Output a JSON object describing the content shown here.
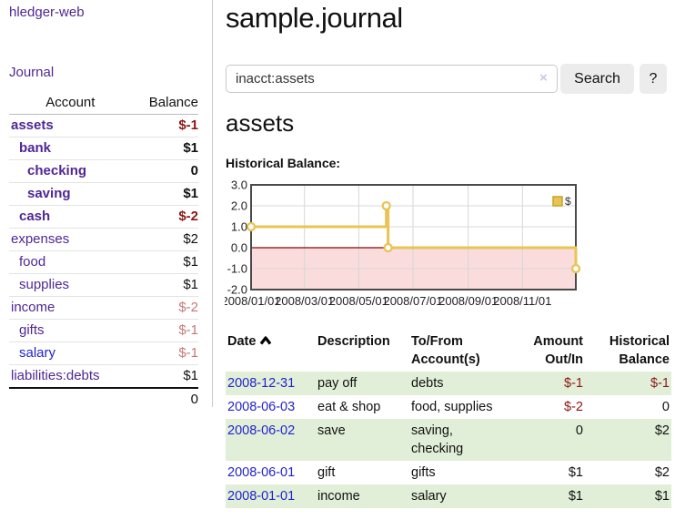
{
  "colors": {
    "link_purple": "#4f2795",
    "link_blue": "#2323cc",
    "negative_strong": "#8e1515",
    "negative_soft": "#c57878",
    "row_green": "#e1efd8",
    "chart_gold": "#e9c454",
    "chart_negative_fill": "#fadcdc",
    "chart_zero_line": "#7d0b0b",
    "button_gray": "#ececec"
  },
  "app_title": "hledger-web",
  "sidebar": {
    "journal_link": "Journal",
    "table_headers": {
      "account": "Account",
      "balance": "Balance"
    },
    "accounts": [
      {
        "name": "assets",
        "balance": "$-1",
        "depth": 1,
        "bold": true,
        "amount_style": "neg-strong",
        "link_style": "purple"
      },
      {
        "name": "bank",
        "balance": "$1",
        "depth": 2,
        "bold": true,
        "amount_style": "normal",
        "link_style": "purple"
      },
      {
        "name": "checking",
        "balance": "0",
        "depth": 3,
        "bold": true,
        "amount_style": "normal",
        "link_style": "purple"
      },
      {
        "name": "saving",
        "balance": "$1",
        "depth": 3,
        "bold": true,
        "amount_style": "normal",
        "link_style": "purple"
      },
      {
        "name": "cash",
        "balance": "$-2",
        "depth": 2,
        "bold": true,
        "amount_style": "neg-strong",
        "link_style": "purple"
      },
      {
        "name": "expenses",
        "balance": "$2",
        "depth": 1,
        "bold": false,
        "amount_style": "normal",
        "link_style": "purple"
      },
      {
        "name": "food",
        "balance": "$1",
        "depth": 2,
        "bold": false,
        "amount_style": "normal",
        "link_style": "purple"
      },
      {
        "name": "supplies",
        "balance": "$1",
        "depth": 2,
        "bold": false,
        "amount_style": "normal",
        "link_style": "purple"
      },
      {
        "name": "income",
        "balance": "$-2",
        "depth": 1,
        "bold": false,
        "amount_style": "neg-soft",
        "link_style": "purple"
      },
      {
        "name": "gifts",
        "balance": "$-1",
        "depth": 2,
        "bold": false,
        "amount_style": "neg-soft",
        "link_style": "purple"
      },
      {
        "name": "salary",
        "balance": "$-1",
        "depth": 2,
        "bold": false,
        "amount_style": "neg-soft",
        "link_style": "blue"
      },
      {
        "name": "liabilities:debts",
        "balance": "$1",
        "depth": 1,
        "bold": false,
        "amount_style": "normal",
        "link_style": "purple"
      }
    ],
    "total": "0"
  },
  "header": {
    "title": "sample.journal"
  },
  "search": {
    "value": "inacct:assets",
    "clear_icon": "×",
    "search_button": "Search",
    "help_button": "?"
  },
  "account_view": {
    "heading": "assets",
    "section_label": "Historical Balance:"
  },
  "chart_data": {
    "type": "line",
    "step": true,
    "series": [
      {
        "name": "$",
        "points": [
          [
            "2008-01-01",
            1
          ],
          [
            "2008-06-01",
            2
          ],
          [
            "2008-06-03",
            0
          ],
          [
            "2008-12-31",
            -1
          ]
        ]
      }
    ],
    "x_domain": [
      "2008-01-01",
      "2008-12-31"
    ],
    "x_ticks": [
      "2008/01/01",
      "2008/03/01",
      "2008/05/01",
      "2008/07/01",
      "2008/09/01",
      "2008/11/01"
    ],
    "y_ticks": [
      "3.0",
      "2.0",
      "1.0",
      "0.0",
      "-1.0",
      "-2.0"
    ],
    "ylim": [
      -2,
      3
    ],
    "grid": true,
    "negative_region_shaded": true,
    "legend": {
      "label": "$",
      "position": "top-right"
    }
  },
  "register": {
    "columns": [
      {
        "label": "Date",
        "align": "left",
        "sorted": "asc"
      },
      {
        "label": "Description",
        "align": "left"
      },
      {
        "label": "To/From\nAccount(s)",
        "align": "left"
      },
      {
        "label": "Amount\nOut/In",
        "align": "right"
      },
      {
        "label": "Historical\nBalance",
        "align": "right"
      }
    ],
    "rows": [
      {
        "date": "2008-12-31",
        "description": "pay off",
        "accounts": "debts",
        "amount": "$-1",
        "amount_style": "neg",
        "balance": "$-1",
        "balance_style": "neg",
        "shaded": true
      },
      {
        "date": "2008-06-03",
        "description": "eat & shop",
        "accounts": "food, supplies",
        "amount": "$-2",
        "amount_style": "neg",
        "balance": "0",
        "balance_style": "normal",
        "shaded": false
      },
      {
        "date": "2008-06-02",
        "description": "save",
        "accounts": "saving,\nchecking",
        "amount": "0",
        "amount_style": "normal",
        "balance": "$2",
        "balance_style": "normal",
        "shaded": true
      },
      {
        "date": "2008-06-01",
        "description": "gift",
        "accounts": "gifts",
        "amount": "$1",
        "amount_style": "normal",
        "balance": "$2",
        "balance_style": "normal",
        "shaded": false
      },
      {
        "date": "2008-01-01",
        "description": "income",
        "accounts": "salary",
        "amount": "$1",
        "amount_style": "normal",
        "balance": "$1",
        "balance_style": "normal",
        "shaded": true
      }
    ]
  }
}
